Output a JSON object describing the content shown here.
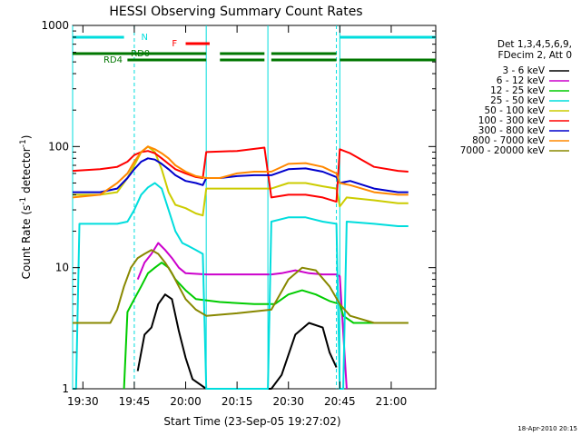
{
  "chart_data": {
    "type": "line",
    "title": "HESSI Observing Summary Count Rates",
    "xlabel": "Start Time (23-Sep-05 19:27:02)",
    "ylabel_parts": [
      "Count Rate (s",
      "-1",
      " detector",
      "-1",
      ")"
    ],
    "y_log": true,
    "ylim": [
      1,
      1000
    ],
    "xlim_minutes": [
      -3,
      103
    ],
    "x_ticks": [
      {
        "m": 0,
        "label": "19:30"
      },
      {
        "m": 15,
        "label": "19:45"
      },
      {
        "m": 30,
        "label": "20:00"
      },
      {
        "m": 45,
        "label": "20:15"
      },
      {
        "m": 60,
        "label": "20:30"
      },
      {
        "m": 75,
        "label": "20:45"
      },
      {
        "m": 90,
        "label": "21:00"
      }
    ],
    "y_ticks": [
      {
        "v": 1,
        "label": "1"
      },
      {
        "v": 10,
        "label": "10"
      },
      {
        "v": 100,
        "label": "100"
      },
      {
        "v": 1000,
        "label": "1000"
      }
    ],
    "legend_title": [
      "Det 1,3,4,5,6,9,",
      "FDecim 2, Att 0"
    ],
    "series": [
      {
        "name": "3 - 6 keV",
        "color": "#000000",
        "points": [
          [
            16,
            1.4
          ],
          [
            18,
            2.8
          ],
          [
            20,
            3.2
          ],
          [
            22,
            5
          ],
          [
            24,
            6
          ],
          [
            26,
            5.5
          ],
          [
            28,
            3
          ],
          [
            30,
            1.8
          ],
          [
            32,
            1.2
          ],
          [
            36,
            1
          ],
          [
            55,
            1
          ],
          [
            58,
            1.3
          ],
          [
            62,
            2.8
          ],
          [
            66,
            3.5
          ],
          [
            70,
            3.2
          ],
          [
            72,
            2
          ],
          [
            74,
            1.5
          ]
        ]
      },
      {
        "name": "6 - 12 keV",
        "color": "#cc00cc",
        "points": [
          [
            16,
            8
          ],
          [
            18,
            11
          ],
          [
            20,
            13
          ],
          [
            22,
            16
          ],
          [
            24,
            14
          ],
          [
            26,
            12
          ],
          [
            28,
            10
          ],
          [
            30,
            9
          ],
          [
            36,
            8.8
          ],
          [
            45,
            8.8
          ],
          [
            55,
            8.8
          ],
          [
            58,
            9
          ],
          [
            62,
            9.5
          ],
          [
            66,
            9
          ],
          [
            70,
            8.8
          ],
          [
            74,
            8.8
          ],
          [
            75,
            8.5
          ],
          [
            77,
            1
          ]
        ]
      },
      {
        "name": "12 - 25 keV",
        "color": "#00cc00",
        "points": [
          [
            12,
            1
          ],
          [
            13,
            4.3
          ],
          [
            15,
            5.5
          ],
          [
            17,
            7
          ],
          [
            19,
            9
          ],
          [
            21,
            10
          ],
          [
            23,
            11
          ],
          [
            25,
            10
          ],
          [
            27,
            8
          ],
          [
            30,
            6.5
          ],
          [
            33,
            5.5
          ],
          [
            40,
            5.2
          ],
          [
            50,
            5
          ],
          [
            56,
            5
          ],
          [
            60,
            6
          ],
          [
            64,
            6.5
          ],
          [
            68,
            6
          ],
          [
            72,
            5.3
          ],
          [
            75,
            5
          ],
          [
            76,
            4
          ],
          [
            79,
            3.5
          ],
          [
            92,
            3.5
          ],
          [
            95,
            3.5
          ]
        ]
      },
      {
        "name": "25 - 50 keV",
        "color": "#00dddd",
        "points": [
          [
            -3,
            1
          ],
          [
            -2,
            1
          ],
          [
            -1,
            23
          ],
          [
            10,
            23
          ],
          [
            13,
            24
          ],
          [
            15,
            30
          ],
          [
            17,
            40
          ],
          [
            19,
            46
          ],
          [
            21,
            50
          ],
          [
            23,
            45
          ],
          [
            25,
            30
          ],
          [
            27,
            20
          ],
          [
            29,
            16
          ],
          [
            31,
            15
          ],
          [
            33,
            14
          ],
          [
            35,
            13
          ],
          [
            36,
            1
          ],
          [
            54,
            1
          ],
          [
            55,
            24
          ],
          [
            60,
            26
          ],
          [
            65,
            26
          ],
          [
            70,
            24
          ],
          [
            74,
            23
          ],
          [
            75,
            1
          ],
          [
            76,
            1
          ],
          [
            77,
            24
          ],
          [
            85,
            23
          ],
          [
            92,
            22
          ],
          [
            95,
            22
          ]
        ]
      },
      {
        "name": "50 - 100 keV",
        "color": "#cccc00",
        "points": [
          [
            -3,
            40
          ],
          [
            5,
            40
          ],
          [
            10,
            42
          ],
          [
            13,
            55
          ],
          [
            15,
            70
          ],
          [
            17,
            90
          ],
          [
            19,
            100
          ],
          [
            21,
            90
          ],
          [
            23,
            65
          ],
          [
            25,
            42
          ],
          [
            27,
            33
          ],
          [
            30,
            31
          ],
          [
            33,
            28
          ],
          [
            35,
            27
          ],
          [
            36,
            45
          ],
          [
            45,
            45
          ],
          [
            55,
            45
          ],
          [
            60,
            50
          ],
          [
            65,
            50
          ],
          [
            70,
            47
          ],
          [
            74,
            45
          ],
          [
            75,
            32
          ],
          [
            77,
            38
          ],
          [
            85,
            36
          ],
          [
            92,
            34
          ],
          [
            95,
            34
          ]
        ]
      },
      {
        "name": "100 - 300 keV",
        "color": "#ff0000",
        "points": [
          [
            -3,
            63
          ],
          [
            5,
            65
          ],
          [
            10,
            68
          ],
          [
            13,
            75
          ],
          [
            15,
            85
          ],
          [
            17,
            90
          ],
          [
            19,
            92
          ],
          [
            21,
            88
          ],
          [
            23,
            80
          ],
          [
            25,
            72
          ],
          [
            27,
            65
          ],
          [
            30,
            60
          ],
          [
            33,
            56
          ],
          [
            35,
            55
          ],
          [
            36,
            90
          ],
          [
            45,
            92
          ],
          [
            53,
            98
          ],
          [
            55,
            38
          ],
          [
            60,
            40
          ],
          [
            65,
            40
          ],
          [
            70,
            38
          ],
          [
            74,
            35
          ],
          [
            75,
            95
          ],
          [
            78,
            88
          ],
          [
            85,
            68
          ],
          [
            92,
            63
          ],
          [
            95,
            62
          ]
        ]
      },
      {
        "name": "300 - 800 keV",
        "color": "#0000cc",
        "points": [
          [
            -3,
            42
          ],
          [
            5,
            42
          ],
          [
            10,
            45
          ],
          [
            13,
            55
          ],
          [
            15,
            65
          ],
          [
            17,
            75
          ],
          [
            19,
            80
          ],
          [
            21,
            78
          ],
          [
            23,
            72
          ],
          [
            25,
            65
          ],
          [
            27,
            58
          ],
          [
            30,
            52
          ],
          [
            33,
            50
          ],
          [
            35,
            48
          ],
          [
            36,
            55
          ],
          [
            40,
            55
          ],
          [
            45,
            57
          ],
          [
            50,
            58
          ],
          [
            55,
            58
          ],
          [
            60,
            65
          ],
          [
            65,
            66
          ],
          [
            70,
            62
          ],
          [
            74,
            56
          ],
          [
            75,
            50
          ],
          [
            78,
            52
          ],
          [
            85,
            45
          ],
          [
            92,
            42
          ],
          [
            95,
            42
          ]
        ]
      },
      {
        "name": "800 - 7000 keV",
        "color": "#ff8800",
        "points": [
          [
            -3,
            38
          ],
          [
            5,
            40
          ],
          [
            10,
            50
          ],
          [
            13,
            60
          ],
          [
            15,
            75
          ],
          [
            17,
            90
          ],
          [
            19,
            100
          ],
          [
            21,
            95
          ],
          [
            23,
            88
          ],
          [
            25,
            80
          ],
          [
            27,
            70
          ],
          [
            30,
            62
          ],
          [
            33,
            57
          ],
          [
            36,
            55
          ],
          [
            40,
            55
          ],
          [
            45,
            60
          ],
          [
            50,
            62
          ],
          [
            55,
            62
          ],
          [
            60,
            72
          ],
          [
            65,
            73
          ],
          [
            70,
            68
          ],
          [
            74,
            60
          ],
          [
            75,
            50
          ],
          [
            78,
            48
          ],
          [
            85,
            42
          ],
          [
            92,
            40
          ],
          [
            95,
            40
          ]
        ]
      },
      {
        "name": "7000 - 20000 keV",
        "color": "#888800",
        "points": [
          [
            -3,
            3.5
          ],
          [
            5,
            3.5
          ],
          [
            8,
            3.5
          ],
          [
            10,
            4.5
          ],
          [
            12,
            7
          ],
          [
            14,
            10
          ],
          [
            16,
            12
          ],
          [
            18,
            13
          ],
          [
            20,
            14
          ],
          [
            22,
            13
          ],
          [
            24,
            11
          ],
          [
            26,
            9
          ],
          [
            28,
            7
          ],
          [
            30,
            5.5
          ],
          [
            33,
            4.5
          ],
          [
            36,
            4
          ],
          [
            45,
            4.2
          ],
          [
            55,
            4.5
          ],
          [
            60,
            8
          ],
          [
            64,
            10
          ],
          [
            68,
            9.5
          ],
          [
            72,
            7
          ],
          [
            75,
            5
          ],
          [
            78,
            4
          ],
          [
            85,
            3.5
          ],
          [
            92,
            3.5
          ],
          [
            95,
            3.5
          ]
        ]
      }
    ],
    "flags": [
      {
        "label": "N",
        "color": "#00dddd",
        "segments": [
          [
            -3,
            12
          ]
        ],
        "label_m": 17,
        "level": 1
      },
      {
        "label": "N",
        "color": "#00dddd",
        "segments": [
          [
            75,
            103
          ]
        ],
        "level": 1
      },
      {
        "label": "F",
        "color": "#ff0000",
        "segments": [
          [
            30,
            37
          ]
        ],
        "label_m": 26,
        "level": 2
      },
      {
        "label": "RD0",
        "color": "#007700",
        "segments": [
          [
            -3,
            36
          ],
          [
            40,
            53
          ],
          [
            55,
            74
          ]
        ],
        "label_m": 14,
        "level": 3
      },
      {
        "label": "RD4",
        "color": "#007700",
        "segments": [
          [
            13,
            36
          ],
          [
            40,
            53
          ],
          [
            55,
            74
          ],
          [
            75,
            103
          ]
        ],
        "label_m": 6,
        "level": 4
      }
    ],
    "dashed_verticals_minutes": [
      15,
      74
    ],
    "solid_verticals_minutes": [
      -3,
      36,
      54,
      75
    ]
  },
  "footer": {
    "timestamp": "18-Apr-2010 20:15"
  }
}
